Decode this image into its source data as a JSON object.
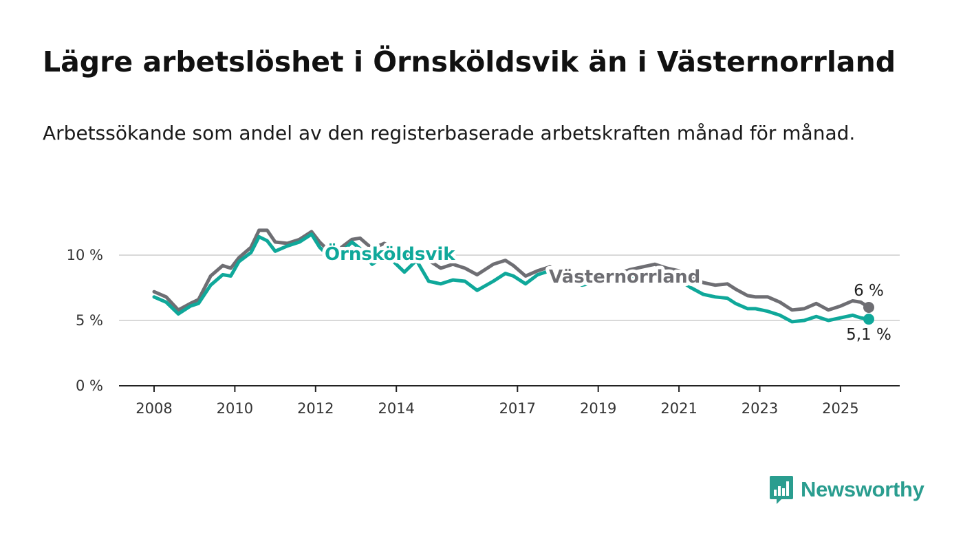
{
  "title": "Lägre arbetslöshet i Örnsköldsvik än i Västernorrland",
  "subtitle": "Arbetssökande som andel av den registerbaserade arbetskraften månad för månad.",
  "brand": {
    "name": "Newsworthy",
    "color": "#2a9d8f",
    "icon": "bar-chart-speech-bubble-icon"
  },
  "chart_data": {
    "type": "line",
    "title": "Lägre arbetslöshet i Örnsköldsvik än i Västernorrland",
    "ylim": [
      0,
      12
    ],
    "y_ticks": [
      0,
      5,
      10
    ],
    "y_tick_labels": [
      "0 %",
      "5 %",
      "10 %"
    ],
    "x_ticks": [
      2008,
      2010,
      2012,
      2014,
      2017,
      2019,
      2021,
      2023,
      2025
    ],
    "x_tick_labels": [
      "2008",
      "2010",
      "2012",
      "2014",
      "2017",
      "2019",
      "2021",
      "2023",
      "2025"
    ],
    "grid": "horizontal",
    "legend": "inline labels",
    "series": [
      {
        "name": "Västernorrland",
        "color": "#6e6e73",
        "end_label": "6 %",
        "points": [
          [
            2008.0,
            7.2
          ],
          [
            2008.3,
            6.8
          ],
          [
            2008.6,
            5.8
          ],
          [
            2008.9,
            6.3
          ],
          [
            2009.1,
            6.6
          ],
          [
            2009.4,
            8.4
          ],
          [
            2009.7,
            9.2
          ],
          [
            2009.9,
            9.0
          ],
          [
            2010.1,
            9.8
          ],
          [
            2010.4,
            10.6
          ],
          [
            2010.6,
            11.9
          ],
          [
            2010.8,
            11.9
          ],
          [
            2011.0,
            11.0
          ],
          [
            2011.3,
            10.9
          ],
          [
            2011.6,
            11.2
          ],
          [
            2011.9,
            11.8
          ],
          [
            2012.1,
            11.0
          ],
          [
            2012.4,
            10.1
          ],
          [
            2012.6,
            10.5
          ],
          [
            2012.9,
            11.2
          ],
          [
            2013.1,
            11.3
          ],
          [
            2013.4,
            10.5
          ],
          [
            2013.7,
            10.9
          ],
          [
            2013.9,
            10.6
          ],
          [
            2014.2,
            9.9
          ],
          [
            2014.5,
            10.2
          ],
          [
            2014.8,
            9.6
          ],
          [
            2015.1,
            9.0
          ],
          [
            2015.4,
            9.3
          ],
          [
            2015.7,
            9.0
          ],
          [
            2016.0,
            8.5
          ],
          [
            2016.4,
            9.3
          ],
          [
            2016.7,
            9.6
          ],
          [
            2016.9,
            9.2
          ],
          [
            2017.2,
            8.4
          ],
          [
            2017.5,
            8.8
          ],
          [
            2017.8,
            9.1
          ],
          [
            2018.0,
            8.7
          ],
          [
            2018.3,
            8.5
          ],
          [
            2018.6,
            8.3
          ],
          [
            2018.9,
            8.4
          ],
          [
            2019.2,
            8.5
          ],
          [
            2019.5,
            8.6
          ],
          [
            2019.8,
            8.9
          ],
          [
            2020.1,
            9.1
          ],
          [
            2020.4,
            9.3
          ],
          [
            2020.7,
            9.0
          ],
          [
            2021.0,
            8.8
          ],
          [
            2021.3,
            8.3
          ],
          [
            2021.6,
            7.9
          ],
          [
            2021.9,
            7.7
          ],
          [
            2022.2,
            7.8
          ],
          [
            2022.4,
            7.4
          ],
          [
            2022.7,
            6.9
          ],
          [
            2022.9,
            6.8
          ],
          [
            2023.2,
            6.8
          ],
          [
            2023.5,
            6.4
          ],
          [
            2023.8,
            5.8
          ],
          [
            2024.1,
            5.9
          ],
          [
            2024.4,
            6.3
          ],
          [
            2024.7,
            5.8
          ],
          [
            2025.0,
            6.1
          ],
          [
            2025.3,
            6.5
          ],
          [
            2025.5,
            6.4
          ],
          [
            2025.7,
            6.0
          ]
        ]
      },
      {
        "name": "Örnsköldsvik",
        "color": "#0fa89a",
        "end_label": "5,1 %",
        "points": [
          [
            2008.0,
            6.8
          ],
          [
            2008.3,
            6.4
          ],
          [
            2008.6,
            5.5
          ],
          [
            2008.9,
            6.1
          ],
          [
            2009.1,
            6.3
          ],
          [
            2009.4,
            7.7
          ],
          [
            2009.7,
            8.5
          ],
          [
            2009.9,
            8.4
          ],
          [
            2010.1,
            9.5
          ],
          [
            2010.4,
            10.2
          ],
          [
            2010.6,
            11.4
          ],
          [
            2010.8,
            11.1
          ],
          [
            2011.0,
            10.3
          ],
          [
            2011.3,
            10.7
          ],
          [
            2011.6,
            11.0
          ],
          [
            2011.9,
            11.6
          ],
          [
            2012.1,
            10.6
          ],
          [
            2012.4,
            9.7
          ],
          [
            2012.6,
            10.1
          ],
          [
            2012.9,
            11.0
          ],
          [
            2013.1,
            10.5
          ],
          [
            2013.4,
            9.3
          ],
          [
            2013.7,
            9.9
          ],
          [
            2013.9,
            9.6
          ],
          [
            2014.2,
            8.7
          ],
          [
            2014.5,
            9.6
          ],
          [
            2014.8,
            8.0
          ],
          [
            2015.1,
            7.8
          ],
          [
            2015.4,
            8.1
          ],
          [
            2015.7,
            8.0
          ],
          [
            2016.0,
            7.3
          ],
          [
            2016.4,
            8.0
          ],
          [
            2016.7,
            8.6
          ],
          [
            2016.9,
            8.4
          ],
          [
            2017.2,
            7.8
          ],
          [
            2017.5,
            8.5
          ],
          [
            2017.8,
            8.8
          ],
          [
            2018.0,
            8.3
          ],
          [
            2018.3,
            8.1
          ],
          [
            2018.6,
            7.7
          ],
          [
            2018.9,
            7.9
          ],
          [
            2019.2,
            8.0
          ],
          [
            2019.5,
            8.2
          ],
          [
            2019.8,
            8.4
          ],
          [
            2020.1,
            8.5
          ],
          [
            2020.4,
            8.7
          ],
          [
            2020.7,
            8.3
          ],
          [
            2021.0,
            8.1
          ],
          [
            2021.3,
            7.5
          ],
          [
            2021.6,
            7.0
          ],
          [
            2021.9,
            6.8
          ],
          [
            2022.2,
            6.7
          ],
          [
            2022.4,
            6.3
          ],
          [
            2022.7,
            5.9
          ],
          [
            2022.9,
            5.9
          ],
          [
            2023.2,
            5.7
          ],
          [
            2023.5,
            5.4
          ],
          [
            2023.8,
            4.9
          ],
          [
            2024.1,
            5.0
          ],
          [
            2024.4,
            5.3
          ],
          [
            2024.7,
            5.0
          ],
          [
            2025.0,
            5.2
          ],
          [
            2025.3,
            5.4
          ],
          [
            2025.5,
            5.2
          ],
          [
            2025.7,
            5.1
          ]
        ]
      }
    ]
  }
}
